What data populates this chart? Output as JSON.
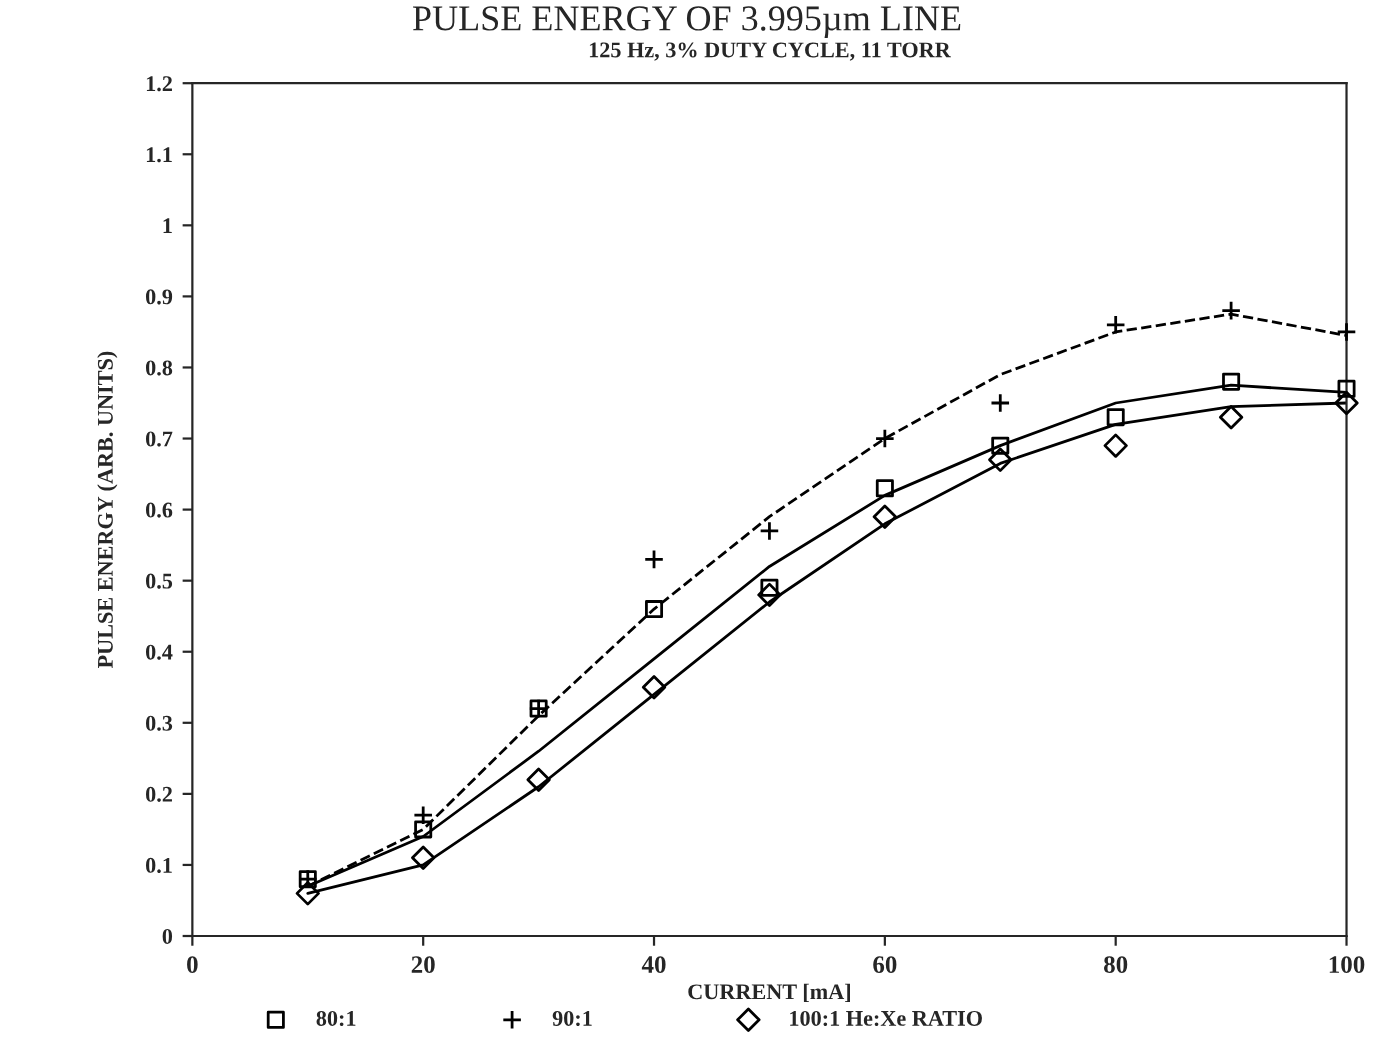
{
  "chart_data": {
    "type": "scatter",
    "title": "PULSE ENERGY OF 3.995µm LINE",
    "subtitle": "125 Hz, 3% DUTY CYCLE, 11 TORR",
    "xlabel": "CURRENT [mA]",
    "ylabel": "PULSE ENERGY (ARB. UNITS)",
    "x": [
      10,
      20,
      30,
      40,
      50,
      60,
      70,
      80,
      90,
      100
    ],
    "series": [
      {
        "name": "80:1",
        "color": "#000000",
        "marker": "square",
        "values": [
          0.08,
          0.15,
          0.32,
          0.46,
          0.49,
          0.63,
          0.69,
          0.73,
          0.78,
          0.77
        ]
      },
      {
        "name": "90:1",
        "color": "#000000",
        "marker": "cross",
        "values": [
          0.08,
          0.17,
          0.32,
          0.53,
          0.57,
          0.7,
          0.75,
          0.86,
          0.88,
          0.85
        ]
      },
      {
        "name": "100:1 He:Xe RATIO",
        "color": "#000000",
        "marker": "diamond",
        "values": [
          0.06,
          0.11,
          0.22,
          0.35,
          0.48,
          0.59,
          0.67,
          0.69,
          0.73,
          0.75
        ]
      },
      {
        "type": "line",
        "color": "#000000",
        "line_style": "solid",
        "x": [
          10,
          20,
          30,
          40,
          50,
          60,
          70,
          80,
          90,
          100
        ],
        "values": [
          0.07,
          0.14,
          0.26,
          0.39,
          0.52,
          0.62,
          0.69,
          0.75,
          0.775,
          0.765
        ]
      },
      {
        "type": "line",
        "color": "#000000",
        "line_style": "dashed",
        "x": [
          10,
          20,
          30,
          40,
          50,
          60,
          70,
          80,
          90,
          100
        ],
        "values": [
          0.07,
          0.15,
          0.31,
          0.46,
          0.59,
          0.7,
          0.79,
          0.85,
          0.875,
          0.845
        ]
      },
      {
        "type": "line",
        "color": "#000000",
        "line_style": "solid",
        "x": [
          10,
          20,
          30,
          40,
          50,
          60,
          70,
          80,
          90,
          100
        ],
        "values": [
          0.06,
          0.1,
          0.21,
          0.34,
          0.47,
          0.58,
          0.665,
          0.72,
          0.745,
          0.75
        ]
      }
    ],
    "xlim": [
      0,
      100
    ],
    "xticks": [
      0,
      20,
      40,
      60,
      80,
      100
    ],
    "ylim": [
      0,
      1.2
    ],
    "yticks": [
      0,
      0.1,
      0.2,
      0.3,
      0.4,
      0.5,
      0.6,
      0.7,
      0.8,
      0.9,
      {
        "value": 1,
        "label": "1"
      },
      1.1,
      1.2
    ],
    "grid": false,
    "legend": "bottom"
  }
}
